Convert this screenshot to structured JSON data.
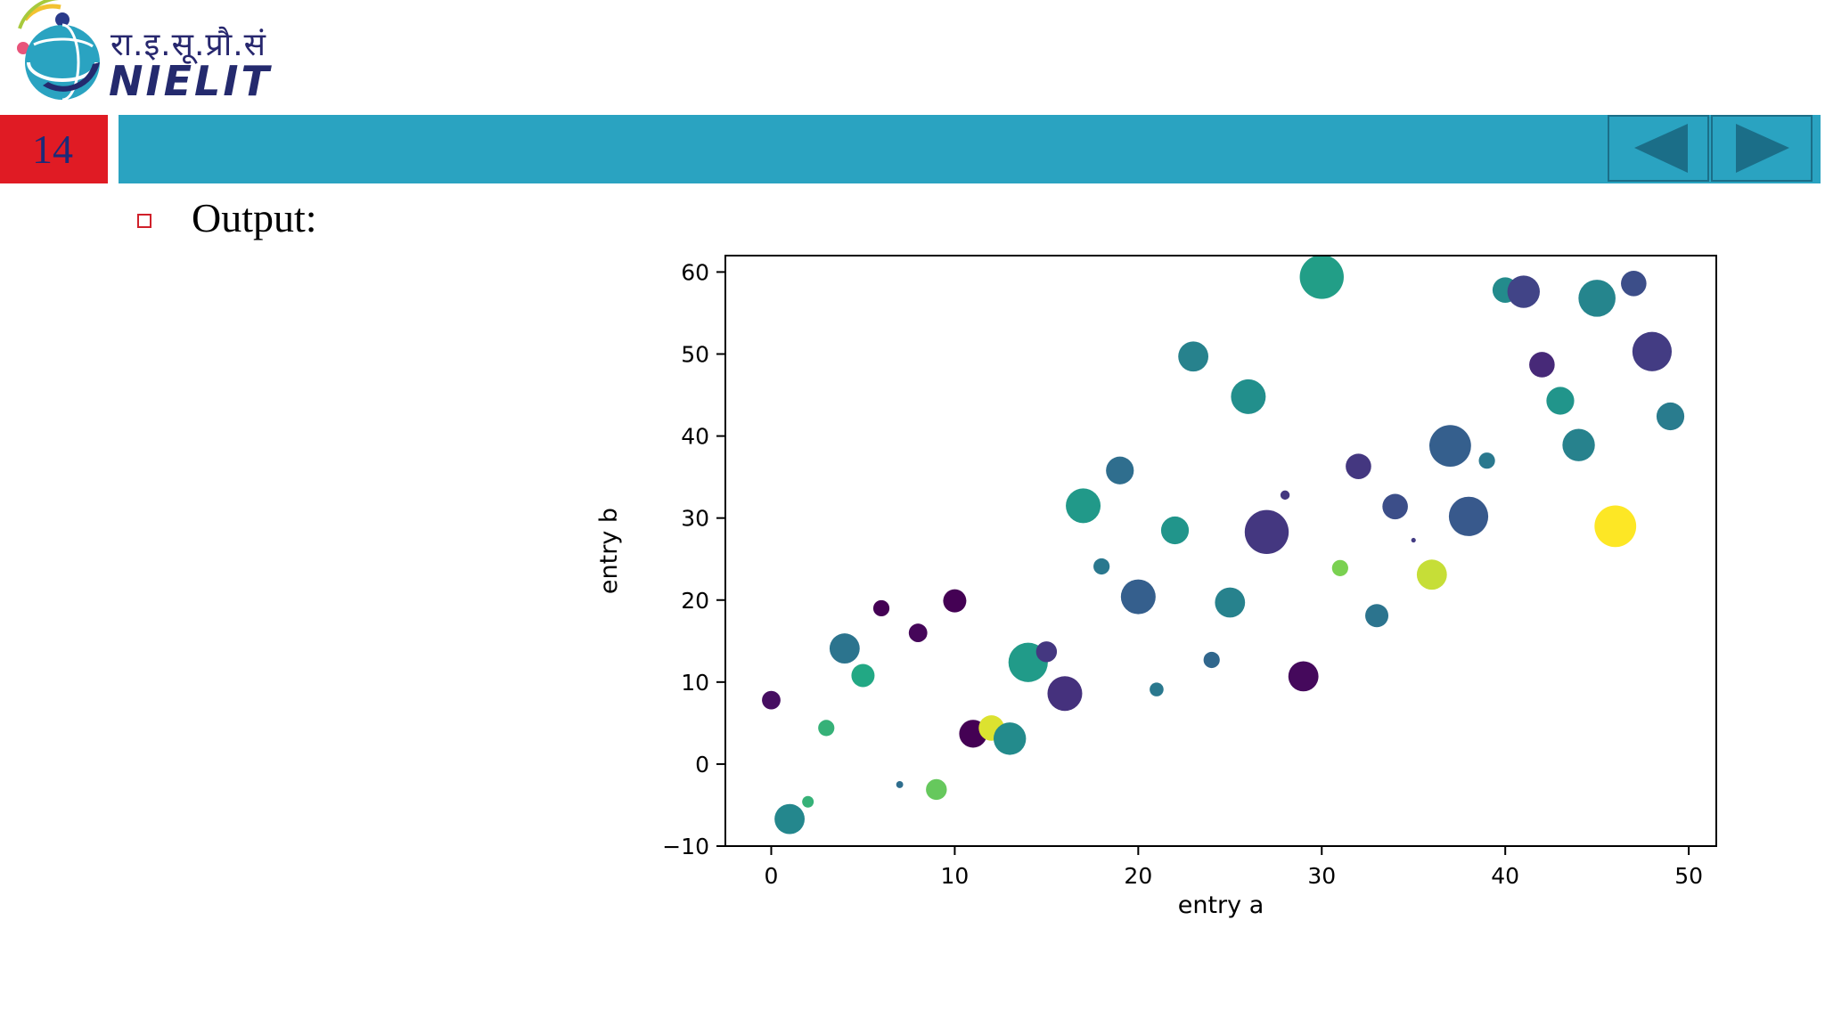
{
  "header": {
    "logo_hindi": "रा.इ.सू.प्रौ.सं",
    "logo_text": "NIELIT",
    "slide_number": "14"
  },
  "nav": {
    "prev_icon": "triangle-left-icon",
    "next_icon": "triangle-right-icon",
    "button_color": "#2aa3c1",
    "icon_color": "#1b6e88"
  },
  "content": {
    "bullet_label": "Output:"
  },
  "chart_data": {
    "type": "scatter",
    "title": "",
    "xlabel": "entry a",
    "ylabel": "entry b",
    "xlim": [
      -2.5,
      51.5
    ],
    "ylim": [
      -10,
      62
    ],
    "xticks": [
      0,
      10,
      20,
      30,
      40,
      50
    ],
    "yticks": [
      -10,
      0,
      10,
      20,
      30,
      40,
      50,
      60
    ],
    "grid": false,
    "legend": "none",
    "colormap": "viridis",
    "points": [
      {
        "x": 0,
        "y": 7.8,
        "size": 8,
        "color": 0.05
      },
      {
        "x": 1,
        "y": -6.7,
        "size": 13,
        "color": 0.58
      },
      {
        "x": 2,
        "y": -4.6,
        "size": 5,
        "color": 0.78
      },
      {
        "x": 3,
        "y": 4.4,
        "size": 7,
        "color": 0.78
      },
      {
        "x": 4,
        "y": 14.1,
        "size": 13,
        "color": 0.48
      },
      {
        "x": 5,
        "y": 10.8,
        "size": 10,
        "color": 0.75
      },
      {
        "x": 6,
        "y": 19.0,
        "size": 7,
        "color": 0.0
      },
      {
        "x": 7,
        "y": -2.5,
        "size": 3,
        "color": 0.45
      },
      {
        "x": 8,
        "y": 16.0,
        "size": 8,
        "color": 0.02
      },
      {
        "x": 9,
        "y": -3.1,
        "size": 9,
        "color": 0.85
      },
      {
        "x": 10,
        "y": 19.9,
        "size": 10,
        "color": 0.0
      },
      {
        "x": 11,
        "y": 3.7,
        "size": 12,
        "color": 0.0
      },
      {
        "x": 12,
        "y": 4.4,
        "size": 11,
        "color": 0.97
      },
      {
        "x": 13,
        "y": 3.1,
        "size": 14,
        "color": 0.6
      },
      {
        "x": 14,
        "y": 12.4,
        "size": 17,
        "color": 0.68
      },
      {
        "x": 15,
        "y": 13.7,
        "size": 9,
        "color": 0.2
      },
      {
        "x": 16,
        "y": 8.6,
        "size": 15,
        "color": 0.18
      },
      {
        "x": 17,
        "y": 31.5,
        "size": 15,
        "color": 0.67
      },
      {
        "x": 18,
        "y": 24.1,
        "size": 7,
        "color": 0.5
      },
      {
        "x": 19,
        "y": 35.8,
        "size": 12,
        "color": 0.45
      },
      {
        "x": 20,
        "y": 20.4,
        "size": 15,
        "color": 0.38
      },
      {
        "x": 21,
        "y": 9.1,
        "size": 6,
        "color": 0.5
      },
      {
        "x": 22,
        "y": 28.5,
        "size": 12,
        "color": 0.65
      },
      {
        "x": 23,
        "y": 49.7,
        "size": 13,
        "color": 0.55
      },
      {
        "x": 24,
        "y": 12.7,
        "size": 7,
        "color": 0.42
      },
      {
        "x": 25,
        "y": 19.7,
        "size": 13,
        "color": 0.55
      },
      {
        "x": 26,
        "y": 44.8,
        "size": 15,
        "color": 0.62
      },
      {
        "x": 27,
        "y": 28.3,
        "size": 19,
        "color": 0.2
      },
      {
        "x": 28,
        "y": 32.8,
        "size": 4,
        "color": 0.2
      },
      {
        "x": 29,
        "y": 10.7,
        "size": 13,
        "color": 0.03
      },
      {
        "x": 30,
        "y": 59.4,
        "size": 19,
        "color": 0.7
      },
      {
        "x": 31,
        "y": 23.9,
        "size": 7,
        "color": 0.88
      },
      {
        "x": 32,
        "y": 36.3,
        "size": 11,
        "color": 0.2
      },
      {
        "x": 33,
        "y": 18.1,
        "size": 10,
        "color": 0.48
      },
      {
        "x": 34,
        "y": 31.4,
        "size": 11,
        "color": 0.3
      },
      {
        "x": 35,
        "y": 27.3,
        "size": 2,
        "color": 0.22
      },
      {
        "x": 36,
        "y": 23.1,
        "size": 13,
        "color": 0.95
      },
      {
        "x": 37,
        "y": 38.8,
        "size": 18,
        "color": 0.38
      },
      {
        "x": 38,
        "y": 30.2,
        "size": 17,
        "color": 0.35
      },
      {
        "x": 39,
        "y": 37.0,
        "size": 7,
        "color": 0.5
      },
      {
        "x": 40,
        "y": 57.8,
        "size": 11,
        "color": 0.6
      },
      {
        "x": 41,
        "y": 57.6,
        "size": 14,
        "color": 0.25
      },
      {
        "x": 42,
        "y": 48.7,
        "size": 11,
        "color": 0.15
      },
      {
        "x": 43,
        "y": 44.3,
        "size": 12,
        "color": 0.65
      },
      {
        "x": 44,
        "y": 38.9,
        "size": 14,
        "color": 0.55
      },
      {
        "x": 45,
        "y": 56.8,
        "size": 16,
        "color": 0.57
      },
      {
        "x": 46,
        "y": 29.0,
        "size": 18,
        "color": 1.0
      },
      {
        "x": 47,
        "y": 58.6,
        "size": 11,
        "color": 0.3
      },
      {
        "x": 48,
        "y": 50.3,
        "size": 17,
        "color": 0.22
      },
      {
        "x": 49,
        "y": 42.4,
        "size": 12,
        "color": 0.52
      }
    ]
  }
}
